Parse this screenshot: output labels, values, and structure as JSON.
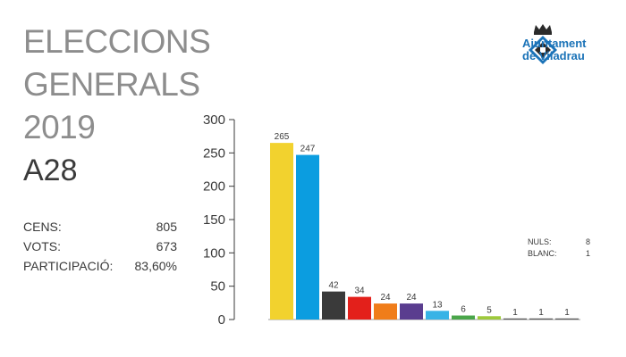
{
  "header": {
    "title_lines": [
      "ELECCIONS",
      "GENERALS",
      "2019"
    ],
    "code": "A28"
  },
  "stats": [
    {
      "label": "CENS:",
      "value": "805"
    },
    {
      "label": "VOTS:",
      "value": "673"
    },
    {
      "label": "PARTICIPACIÓ:",
      "value": "83,60%"
    }
  ],
  "side_stats": [
    {
      "label": "NULS:",
      "value": "8"
    },
    {
      "label": "BLANC:",
      "value": "1"
    }
  ],
  "logo": {
    "line1": "Ajuntament",
    "line2": "de Viladrau",
    "color": "#1b73b8",
    "icon": "coat-of-arms-icon"
  },
  "chart_data": {
    "type": "bar",
    "title": "",
    "xlabel": "",
    "ylabel": "",
    "ylim": [
      0,
      300
    ],
    "yticks": [
      0,
      50,
      100,
      150,
      200,
      250,
      300
    ],
    "grid": false,
    "values": [
      265,
      247,
      42,
      34,
      24,
      24,
      13,
      6,
      5,
      1,
      1,
      1
    ],
    "labels": [
      "265",
      "247",
      "42",
      "34",
      "24",
      "24",
      "13",
      "6",
      "5",
      "1",
      "1",
      "1"
    ],
    "colors": [
      "#f2d22e",
      "#0b9de0",
      "#3a3a3a",
      "#e3201b",
      "#f07d1a",
      "#5a3d8f",
      "#38b3e6",
      "#4aa64a",
      "#9ec93c",
      "#555555",
      "#555555",
      "#555555"
    ]
  }
}
